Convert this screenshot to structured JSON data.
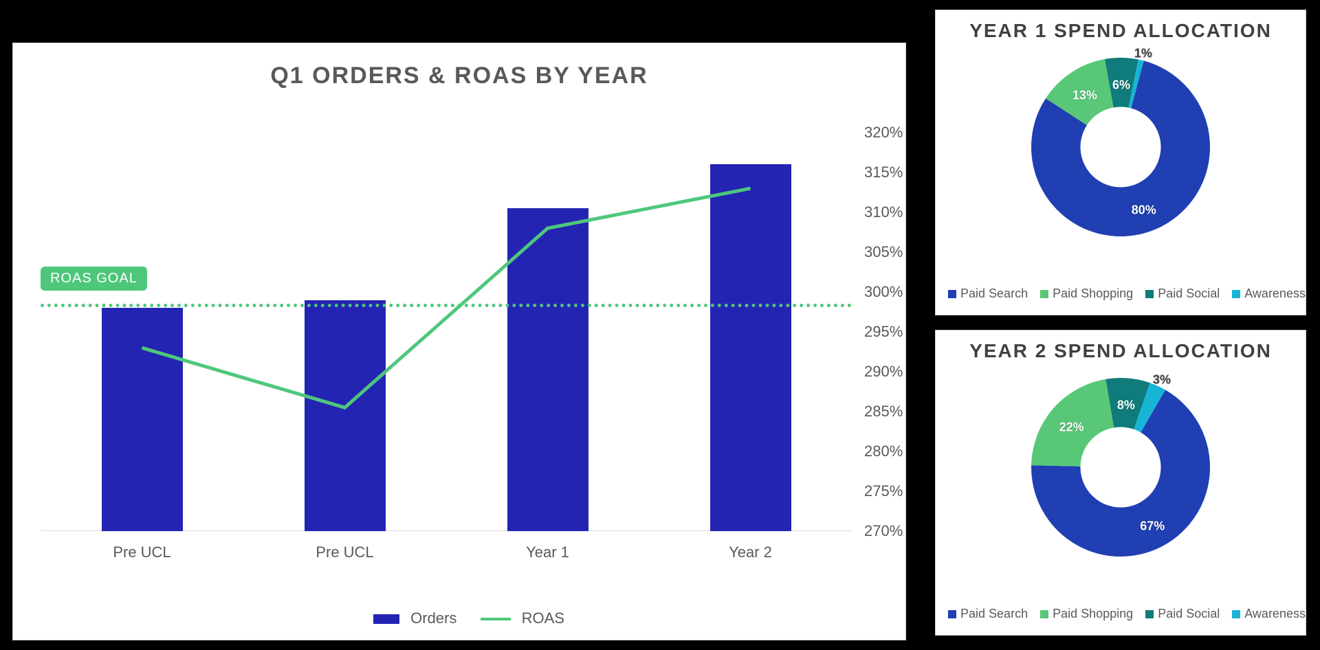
{
  "main_chart": {
    "title": "Q1 ORDERS & ROAS BY YEAR",
    "title_fontsize": 34,
    "title_color": "#595959",
    "background_color": "#ffffff",
    "panel_border_color": "#cfcfcf",
    "categories": [
      "Pre UCL",
      "Pre UCL",
      "Year 1",
      "Year 2"
    ],
    "bars": {
      "label": "Orders",
      "color": "#2424b3",
      "values": [
        298,
        299,
        310.5,
        316
      ],
      "bar_width_frac": 0.4
    },
    "line": {
      "label": "ROAS",
      "color": "#4ec77b",
      "stroke_width": 5,
      "values": [
        293,
        285.5,
        308,
        313
      ]
    },
    "goal": {
      "label": "ROAS GOAL",
      "value": 298.5,
      "line_color": "#4ec77b",
      "badge_bg": "#4ec77b",
      "badge_text_color": "#ffffff"
    },
    "y_axis": {
      "min": 270,
      "max": 320,
      "tick_step": 5,
      "suffix": "%",
      "label_color": "#595959",
      "label_fontsize": 22
    },
    "x_axis": {
      "label_color": "#595959",
      "label_fontsize": 22,
      "baseline_color": "#d9d9d9"
    },
    "legend": {
      "items": [
        "Orders",
        "ROAS"
      ],
      "fontsize": 22,
      "color": "#595959"
    }
  },
  "donut1": {
    "title": "YEAR 1 SPEND ALLOCATION",
    "title_fontsize": 28,
    "title_color": "#404040",
    "hole_ratio": 0.45,
    "slices": [
      {
        "name": "Paid Search",
        "value": 80,
        "label": "80%",
        "color": "#1f3fb3"
      },
      {
        "name": "Paid Shopping",
        "value": 13,
        "label": "13%",
        "color": "#58c878"
      },
      {
        "name": "Paid Social",
        "value": 6,
        "label": "6%",
        "color": "#0f7b7b"
      },
      {
        "name": "Awareness",
        "value": 1,
        "label": "1%",
        "color": "#18b4d6"
      }
    ],
    "start_angle_deg": -75,
    "legend_fontsize": 18,
    "legend_color": "#595959",
    "label_color": "#ffffff",
    "label_fontsize": 18
  },
  "donut2": {
    "title": "YEAR 2 SPEND ALLOCATION",
    "title_fontsize": 28,
    "title_color": "#404040",
    "hole_ratio": 0.45,
    "slices": [
      {
        "name": "Paid Search",
        "value": 67,
        "label": "67%",
        "color": "#1f3fb3"
      },
      {
        "name": "Paid Shopping",
        "value": 22,
        "label": "22%",
        "color": "#58c878"
      },
      {
        "name": "Paid Social",
        "value": 8,
        "label": "8%",
        "color": "#0f7b7b"
      },
      {
        "name": "Awareness",
        "value": 3,
        "label": "3%",
        "color": "#18b4d6"
      }
    ],
    "start_angle_deg": -60,
    "legend_fontsize": 18,
    "legend_color": "#595959",
    "label_color": "#ffffff",
    "label_fontsize": 18
  }
}
